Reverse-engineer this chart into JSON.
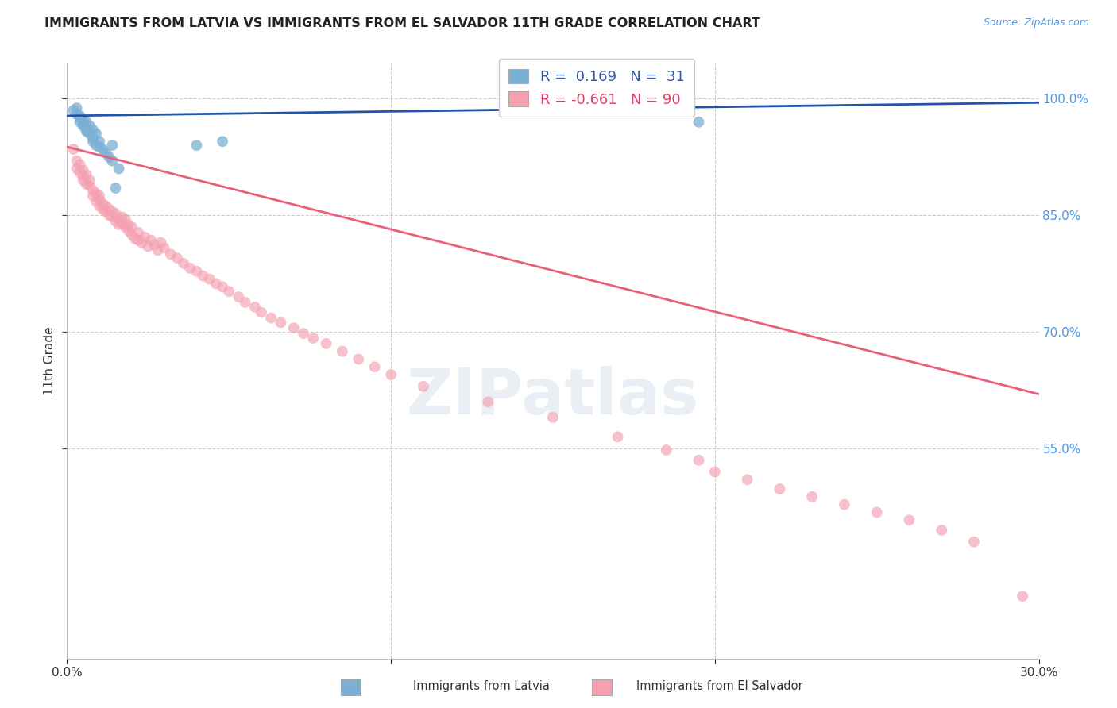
{
  "title": "IMMIGRANTS FROM LATVIA VS IMMIGRANTS FROM EL SALVADOR 11TH GRADE CORRELATION CHART",
  "source": "Source: ZipAtlas.com",
  "ylabel": "11th Grade",
  "ytick_labels": [
    "100.0%",
    "85.0%",
    "70.0%",
    "55.0%"
  ],
  "ytick_values": [
    1.0,
    0.85,
    0.7,
    0.55
  ],
  "xlim": [
    0.0,
    0.3
  ],
  "ylim": [
    0.28,
    1.045
  ],
  "legend_blue_r": "0.169",
  "legend_blue_n": "31",
  "legend_pink_r": "-0.661",
  "legend_pink_n": "90",
  "blue_color": "#7BAFD4",
  "pink_color": "#F4A0B0",
  "blue_line_color": "#2255AA",
  "pink_line_color": "#E8607A",
  "watermark": "ZIPatlas",
  "blue_scatter_x": [
    0.002,
    0.003,
    0.003,
    0.004,
    0.004,
    0.004,
    0.005,
    0.005,
    0.005,
    0.006,
    0.006,
    0.006,
    0.007,
    0.007,
    0.008,
    0.008,
    0.008,
    0.009,
    0.009,
    0.01,
    0.01,
    0.011,
    0.012,
    0.013,
    0.014,
    0.014,
    0.015,
    0.016,
    0.04,
    0.048,
    0.195
  ],
  "blue_scatter_y": [
    0.985,
    0.988,
    0.98,
    0.975,
    0.97,
    0.978,
    0.972,
    0.968,
    0.965,
    0.96,
    0.97,
    0.958,
    0.965,
    0.955,
    0.95,
    0.96,
    0.945,
    0.94,
    0.955,
    0.938,
    0.945,
    0.935,
    0.93,
    0.925,
    0.94,
    0.92,
    0.885,
    0.91,
    0.94,
    0.945,
    0.97
  ],
  "pink_scatter_x": [
    0.002,
    0.003,
    0.003,
    0.004,
    0.004,
    0.005,
    0.005,
    0.005,
    0.006,
    0.006,
    0.007,
    0.007,
    0.008,
    0.008,
    0.009,
    0.009,
    0.01,
    0.01,
    0.01,
    0.011,
    0.011,
    0.012,
    0.012,
    0.013,
    0.013,
    0.014,
    0.014,
    0.015,
    0.015,
    0.016,
    0.016,
    0.017,
    0.017,
    0.018,
    0.018,
    0.019,
    0.019,
    0.02,
    0.02,
    0.021,
    0.022,
    0.022,
    0.023,
    0.024,
    0.025,
    0.026,
    0.027,
    0.028,
    0.029,
    0.03,
    0.032,
    0.034,
    0.036,
    0.038,
    0.04,
    0.042,
    0.044,
    0.046,
    0.048,
    0.05,
    0.053,
    0.055,
    0.058,
    0.06,
    0.063,
    0.066,
    0.07,
    0.073,
    0.076,
    0.08,
    0.085,
    0.09,
    0.095,
    0.1,
    0.11,
    0.13,
    0.15,
    0.17,
    0.185,
    0.195,
    0.2,
    0.21,
    0.22,
    0.23,
    0.24,
    0.25,
    0.26,
    0.27,
    0.28,
    0.295
  ],
  "pink_scatter_y": [
    0.935,
    0.92,
    0.91,
    0.905,
    0.915,
    0.9,
    0.895,
    0.908,
    0.89,
    0.902,
    0.888,
    0.895,
    0.882,
    0.875,
    0.878,
    0.868,
    0.87,
    0.862,
    0.875,
    0.858,
    0.865,
    0.855,
    0.862,
    0.85,
    0.858,
    0.848,
    0.855,
    0.842,
    0.852,
    0.845,
    0.838,
    0.848,
    0.84,
    0.835,
    0.845,
    0.838,
    0.83,
    0.825,
    0.835,
    0.82,
    0.818,
    0.828,
    0.815,
    0.822,
    0.81,
    0.818,
    0.812,
    0.805,
    0.815,
    0.808,
    0.8,
    0.795,
    0.788,
    0.782,
    0.778,
    0.772,
    0.768,
    0.762,
    0.758,
    0.752,
    0.745,
    0.738,
    0.732,
    0.725,
    0.718,
    0.712,
    0.705,
    0.698,
    0.692,
    0.685,
    0.675,
    0.665,
    0.655,
    0.645,
    0.63,
    0.61,
    0.59,
    0.565,
    0.548,
    0.535,
    0.52,
    0.51,
    0.498,
    0.488,
    0.478,
    0.468,
    0.458,
    0.445,
    0.43,
    0.36
  ],
  "blue_trendline_x": [
    0.0,
    0.3
  ],
  "blue_trendline_y": [
    0.978,
    0.995
  ],
  "pink_trendline_x": [
    0.0,
    0.3
  ],
  "pink_trendline_y": [
    0.938,
    0.62
  ]
}
